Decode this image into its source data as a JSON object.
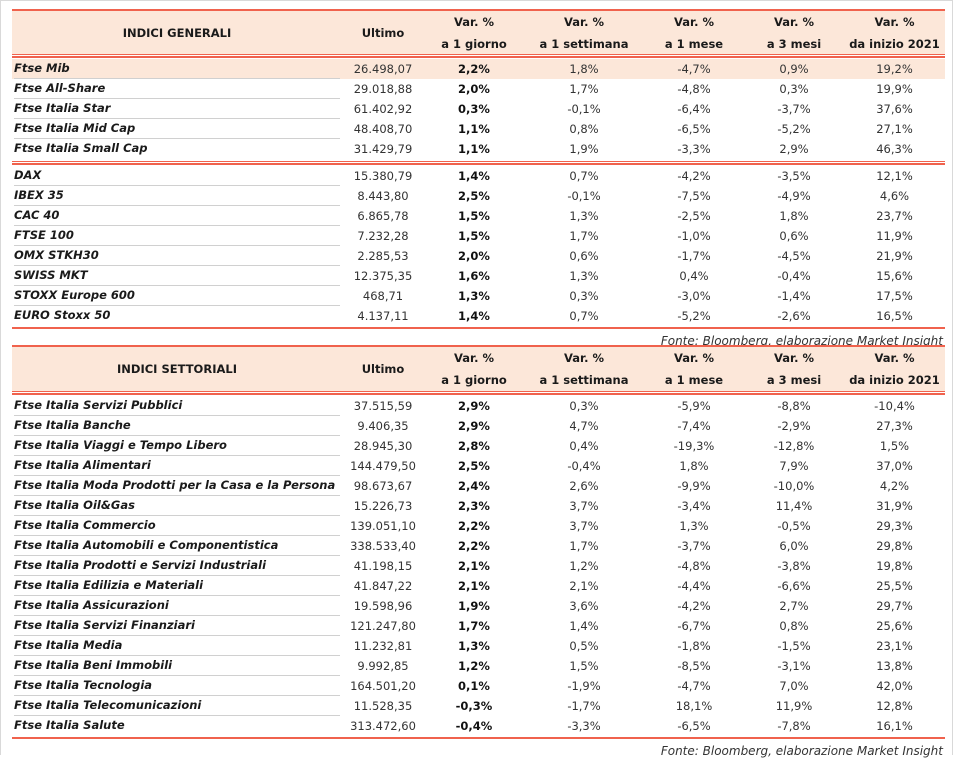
{
  "colors": {
    "accent": "#f0624d",
    "header_bg": "#fce7d9"
  },
  "tables": [
    {
      "columns": [
        [
          "INDICI GENERALI"
        ],
        [
          "Ultimo"
        ],
        [
          "Var. %",
          "a 1 giorno"
        ],
        [
          "Var. %",
          "a 1 settimana"
        ],
        [
          "Var. %",
          "a 1 mese"
        ],
        [
          "Var. %",
          "a 3 mesi"
        ],
        [
          "Var. %",
          "da inizio 2021"
        ]
      ],
      "groups": [
        [
          [
            "Ftse Mib",
            "26.498,07",
            "2,2%",
            "1,8%",
            "-4,7%",
            "0,9%",
            "19,2%"
          ],
          [
            "Ftse All-Share",
            "29.018,88",
            "2,0%",
            "1,7%",
            "-4,8%",
            "0,3%",
            "19,9%"
          ],
          [
            "Ftse Italia Star",
            "61.402,92",
            "0,3%",
            "-0,1%",
            "-6,4%",
            "-3,7%",
            "37,6%"
          ],
          [
            "Ftse Italia Mid Cap",
            "48.408,70",
            "1,1%",
            "0,8%",
            "-6,5%",
            "-5,2%",
            "27,1%"
          ],
          [
            "Ftse Italia Small Cap",
            "31.429,79",
            "1,1%",
            "1,9%",
            "-3,3%",
            "2,9%",
            "46,3%"
          ]
        ],
        [
          [
            "DAX",
            "15.380,79",
            "1,4%",
            "0,7%",
            "-4,2%",
            "-3,5%",
            "12,1%"
          ],
          [
            "IBEX 35",
            "8.443,80",
            "2,5%",
            "-0,1%",
            "-7,5%",
            "-4,9%",
            "4,6%"
          ],
          [
            "CAC 40",
            "6.865,78",
            "1,5%",
            "1,3%",
            "-2,5%",
            "1,8%",
            "23,7%"
          ],
          [
            "FTSE 100",
            "7.232,28",
            "1,5%",
            "1,7%",
            "-1,0%",
            "0,6%",
            "11,9%"
          ],
          [
            "OMX STKH30",
            "2.285,53",
            "2,0%",
            "0,6%",
            "-1,7%",
            "-4,5%",
            "21,9%"
          ],
          [
            "SWISS MKT",
            "12.375,35",
            "1,6%",
            "1,3%",
            "0,4%",
            "-0,4%",
            "15,6%"
          ],
          [
            "STOXX Europe 600",
            "468,71",
            "1,3%",
            "0,3%",
            "-3,0%",
            "-1,4%",
            "17,5%"
          ],
          [
            "EURO Stoxx 50",
            "4.137,11",
            "1,4%",
            "0,7%",
            "-5,2%",
            "-2,6%",
            "16,5%"
          ]
        ]
      ],
      "highlighted_row": "Ftse Mib",
      "source": "Fonte: Bloomberg, elaborazione Market Insight"
    },
    {
      "columns": [
        [
          "INDICI SETTORIALI"
        ],
        [
          "Ultimo"
        ],
        [
          "Var. %",
          "a 1 giorno"
        ],
        [
          "Var. %",
          "a 1 settimana"
        ],
        [
          "Var. %",
          "a 1 mese"
        ],
        [
          "Var. %",
          "a 3 mesi"
        ],
        [
          "Var. %",
          "da inizio 2021"
        ]
      ],
      "groups": [
        [
          [
            "Ftse Italia Servizi Pubblici",
            "37.515,59",
            "2,9%",
            "0,3%",
            "-5,9%",
            "-8,8%",
            "-10,4%"
          ],
          [
            "Ftse Italia Banche",
            "9.406,35",
            "2,9%",
            "4,7%",
            "-7,4%",
            "-2,9%",
            "27,3%"
          ],
          [
            "Ftse Italia Viaggi e Tempo Libero",
            "28.945,30",
            "2,8%",
            "0,4%",
            "-19,3%",
            "-12,8%",
            "1,5%"
          ],
          [
            "Ftse Italia Alimentari",
            "144.479,50",
            "2,5%",
            "-0,4%",
            "1,8%",
            "7,9%",
            "37,0%"
          ],
          [
            "Ftse Italia Moda Prodotti per la Casa e la Persona",
            "98.673,67",
            "2,4%",
            "2,6%",
            "-9,9%",
            "-10,0%",
            "4,2%"
          ],
          [
            "Ftse Italia Oil&Gas",
            "15.226,73",
            "2,3%",
            "3,7%",
            "-3,4%",
            "11,4%",
            "31,9%"
          ],
          [
            "Ftse Italia Commercio",
            "139.051,10",
            "2,2%",
            "3,7%",
            "1,3%",
            "-0,5%",
            "29,3%"
          ],
          [
            "Ftse Italia Automobili e Componentistica",
            "338.533,40",
            "2,2%",
            "1,7%",
            "-3,7%",
            "6,0%",
            "29,8%"
          ],
          [
            "Ftse Italia Prodotti e Servizi Industriali",
            "41.198,15",
            "2,1%",
            "1,2%",
            "-4,8%",
            "-3,8%",
            "19,8%"
          ],
          [
            "Ftse Italia Edilizia e Materiali",
            "41.847,22",
            "2,1%",
            "2,1%",
            "-4,4%",
            "-6,6%",
            "25,5%"
          ],
          [
            "Ftse Italia Assicurazioni",
            "19.598,96",
            "1,9%",
            "3,6%",
            "-4,2%",
            "2,7%",
            "29,7%"
          ],
          [
            "Ftse Italia Servizi Finanziari",
            "121.247,80",
            "1,7%",
            "1,4%",
            "-6,7%",
            "0,8%",
            "25,6%"
          ],
          [
            "Ftse Italia Media",
            "11.232,81",
            "1,3%",
            "0,5%",
            "-1,8%",
            "-1,5%",
            "23,1%"
          ],
          [
            "Ftse Italia Beni Immobili",
            "9.992,85",
            "1,2%",
            "1,5%",
            "-8,5%",
            "-3,1%",
            "13,8%"
          ],
          [
            "Ftse Italia Tecnologia",
            "164.501,20",
            "0,1%",
            "-1,9%",
            "-4,7%",
            "7,0%",
            "42,0%"
          ],
          [
            "Ftse Italia Telecomunicazioni",
            "11.528,35",
            "-0,3%",
            "-1,7%",
            "18,1%",
            "11,9%",
            "12,8%"
          ],
          [
            "Ftse Italia Salute",
            "313.472,60",
            "-0,4%",
            "-3,3%",
            "-6,5%",
            "-7,8%",
            "16,1%"
          ]
        ]
      ],
      "highlighted_row": "",
      "source": "Fonte: Bloomberg, elaborazione Market Insight"
    }
  ]
}
